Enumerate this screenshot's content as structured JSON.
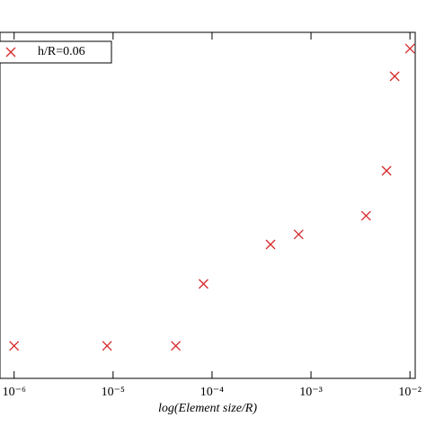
{
  "chart_data": {
    "type": "scatter",
    "x_label": "log(Element size/R)",
    "x_scale": "log",
    "series": [
      {
        "name": "h/R=0.06",
        "color": "#d62728",
        "x": [
          1e-06,
          8.7e-06,
          4.3e-05,
          8.2e-05,
          0.00039,
          0.00075,
          0.0036,
          0.0058,
          0.007,
          0.01
        ],
        "values": [
          0.094,
          0.094,
          0.094,
          0.273,
          0.387,
          0.416,
          0.47,
          0.6,
          0.873,
          0.953
        ]
      }
    ],
    "xlim": [
      7.2e-07,
      0.0113
    ],
    "ylim": [
      0,
      1
    ],
    "xticks": [
      {
        "value": 1e-06,
        "label": "10⁻⁶"
      },
      {
        "value": 1e-05,
        "label": "10⁻⁵"
      },
      {
        "value": 0.0001,
        "label": "10⁻⁴"
      },
      {
        "value": 0.001,
        "label": "10⁻³"
      },
      {
        "value": 0.01,
        "label": "10⁻²"
      }
    ],
    "legend": "upper-left"
  }
}
